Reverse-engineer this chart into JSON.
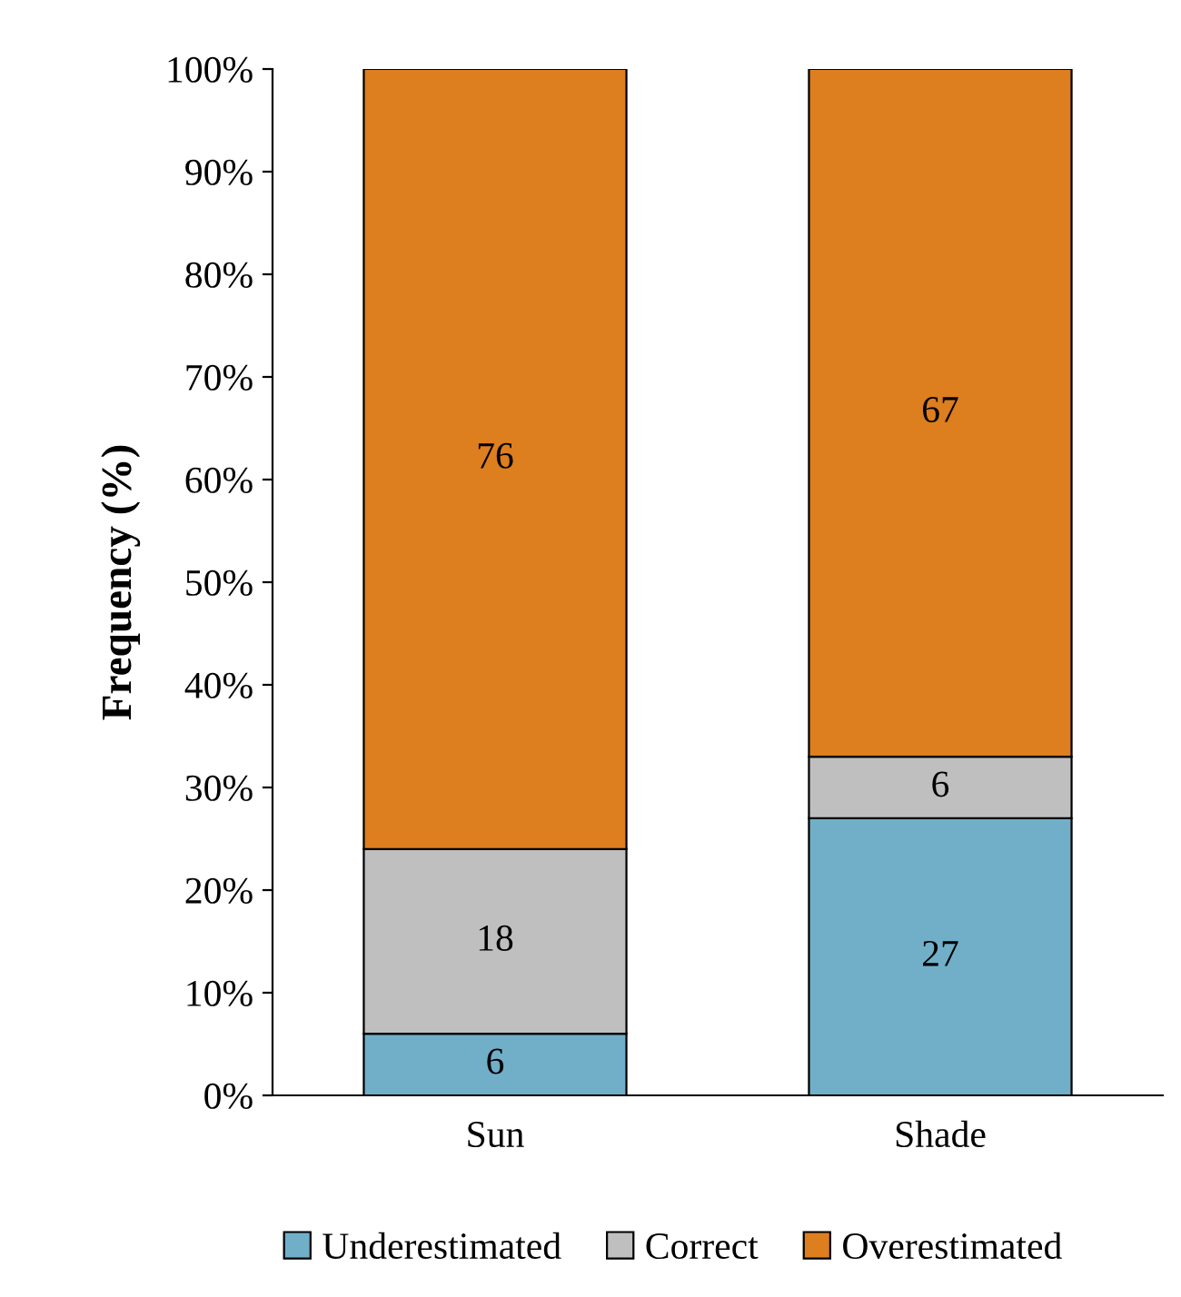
{
  "chart_data": {
    "type": "bar",
    "stacked": true,
    "ylabel": "Frequency (%)",
    "categories": [
      "Sun",
      "Shade"
    ],
    "series": [
      {
        "name": "Underestimated",
        "color": "#71afc9",
        "values": [
          6,
          27
        ]
      },
      {
        "name": "Correct",
        "color": "#bfbfbf",
        "values": [
          18,
          6
        ]
      },
      {
        "name": "Overestimated",
        "color": "#dd7e1f",
        "values": [
          76,
          67
        ]
      }
    ],
    "ylim": [
      0,
      100
    ],
    "yticks": [
      {
        "value": 0,
        "label": "0%"
      },
      {
        "value": 10,
        "label": "10%"
      },
      {
        "value": 20,
        "label": "20%"
      },
      {
        "value": 30,
        "label": "30%"
      },
      {
        "value": 40,
        "label": "40%"
      },
      {
        "value": 50,
        "label": "50%"
      },
      {
        "value": 60,
        "label": "60%"
      },
      {
        "value": 70,
        "label": "70%"
      },
      {
        "value": 80,
        "label": "80%"
      },
      {
        "value": 90,
        "label": "90%"
      },
      {
        "value": 100,
        "label": "100%"
      }
    ],
    "data_labels": true,
    "legend": "bottom",
    "grid": false
  }
}
